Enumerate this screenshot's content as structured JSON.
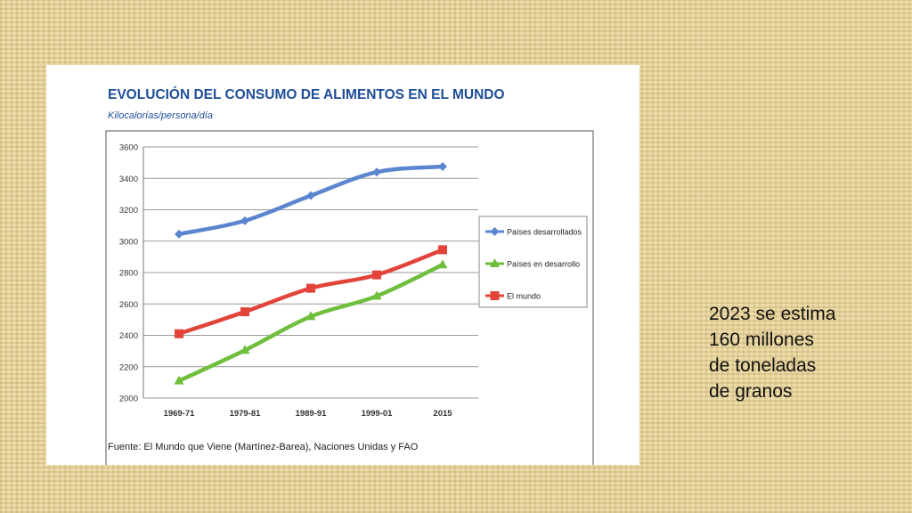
{
  "colors": {
    "background": "#e9d7a0",
    "title": "#1f4e9a",
    "desarrollados": "#5b86cf",
    "en_desarrollo": "#6fbe3c",
    "mundo": "#e2443a"
  },
  "side_note": {
    "lines": [
      "2023 se estima",
      "160 millones",
      "de toneladas",
      "de granos"
    ]
  },
  "chart_data": {
    "type": "line",
    "title": "EVOLUCIÓN DEL CONSUMO DE ALIMENTOS EN EL MUNDO",
    "subtitle": "Kilocalorías/persona/día",
    "source": "Fuente: El Mundo que Viene (Martínez-Barea), Naciones Unidas y FAO",
    "categories": [
      "1969-71",
      "1979-81",
      "1989-91",
      "1999-01",
      "2015"
    ],
    "ylim": [
      2000,
      3600
    ],
    "yticks": [
      2000,
      2200,
      2400,
      2600,
      2800,
      3000,
      3200,
      3400,
      3600
    ],
    "grid": true,
    "legend_position": "right",
    "series": [
      {
        "name": "Países desarrollados",
        "color": "#5b86cf",
        "marker": "diamond",
        "values": [
          3045,
          3130,
          3290,
          3440,
          3475
        ]
      },
      {
        "name": "Países en desarrollo",
        "color": "#6fbe3c",
        "marker": "triangle",
        "values": [
          2110,
          2305,
          2520,
          2650,
          2850
        ]
      },
      {
        "name": "El mundo",
        "color": "#e2443a",
        "marker": "square",
        "values": [
          2410,
          2550,
          2700,
          2785,
          2945
        ]
      }
    ]
  }
}
